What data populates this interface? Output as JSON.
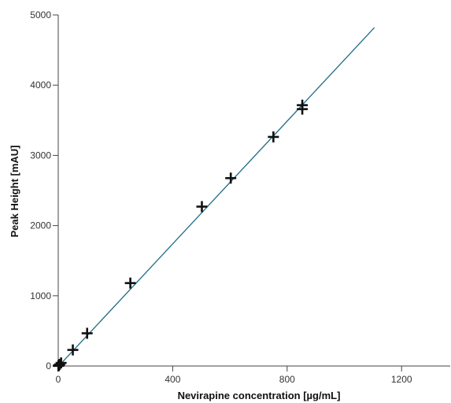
{
  "chart_data": {
    "type": "scatter",
    "title": "",
    "xlabel": "Nevirapine concentration [µg/mL]",
    "ylabel": "Peak Height [mAU]",
    "xlim": [
      0,
      1370
    ],
    "ylim": [
      0,
      5000
    ],
    "x_ticks": [
      0,
      400,
      800,
      1200
    ],
    "y_ticks": [
      0,
      1000,
      2000,
      3000,
      4000,
      5000
    ],
    "x_tick_labels": [
      "0",
      "400",
      "800",
      "1200"
    ],
    "y_tick_labels": [
      "0",
      "1000",
      "2000",
      "3000",
      "4000",
      "5000"
    ],
    "grid": false,
    "legend": "none",
    "series": [
      {
        "marker": "plus",
        "color": "#111111",
        "points": [
          {
            "x": 0.5,
            "y": 2
          },
          {
            "x": 1,
            "y": 5
          },
          {
            "x": 2,
            "y": 9
          },
          {
            "x": 5,
            "y": 22
          },
          {
            "x": 10,
            "y": 44
          },
          {
            "x": 51,
            "y": 229
          },
          {
            "x": 101,
            "y": 466
          },
          {
            "x": 252,
            "y": 1181
          },
          {
            "x": 502,
            "y": 2270
          },
          {
            "x": 603,
            "y": 2676
          },
          {
            "x": 752,
            "y": 3263
          },
          {
            "x": 853,
            "y": 3659
          },
          {
            "x": 853,
            "y": 3715
          }
        ]
      }
    ],
    "fit_line": {
      "type": "linear",
      "color": "#1f6b86",
      "from": {
        "x": 0,
        "y": -8
      },
      "to": {
        "x": 1105,
        "y": 4820
      }
    }
  }
}
